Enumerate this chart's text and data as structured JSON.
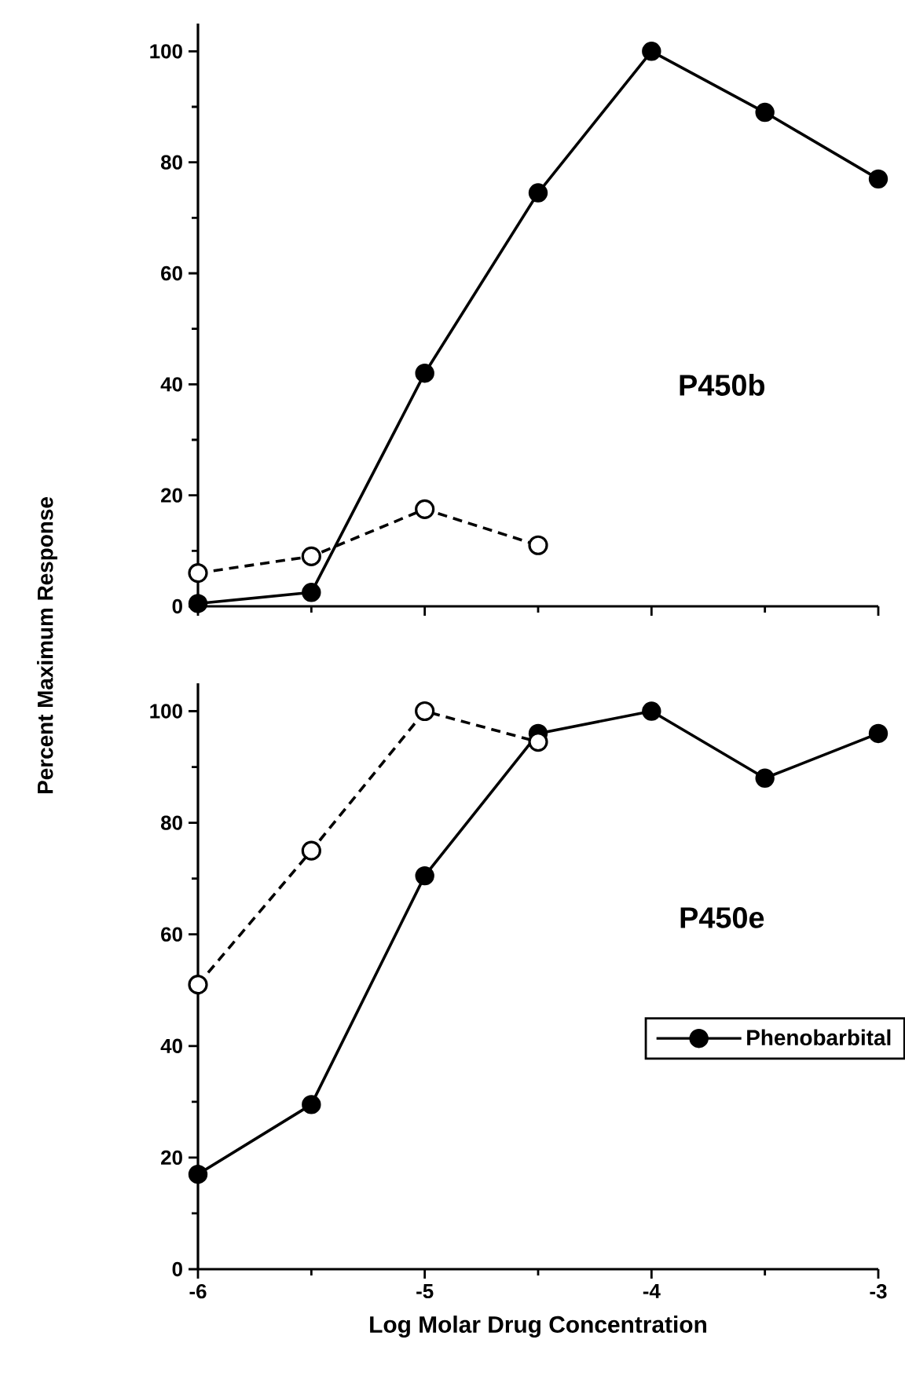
{
  "chart_data": [
    {
      "type": "line",
      "ylabel": "Percent Maximum Response",
      "annotations": [
        "P450b"
      ],
      "xlim": [
        -6,
        -3
      ],
      "xticks": [
        {
          "value": -6,
          "label": null
        },
        {
          "value": -5,
          "label": null
        },
        {
          "value": -4,
          "label": null
        },
        {
          "value": -3,
          "label": null
        }
      ],
      "ylim": [
        0,
        105
      ],
      "yticks": [
        0,
        20,
        40,
        60,
        80,
        100
      ],
      "tick_labels": "y",
      "legend": false,
      "series": [
        {
          "color": "#000000",
          "marker": "circle",
          "line_style": "solid",
          "x": [
            -6,
            -5.5,
            -5,
            -4.5,
            -4,
            -3.5,
            -3
          ],
          "values": [
            0.5,
            2.5,
            42,
            74.5,
            100,
            89,
            77
          ]
        },
        {
          "color": "#000000",
          "marker": "open circle",
          "line_style": "dashed",
          "x": [
            -6,
            -5.5,
            -5,
            -4.5
          ],
          "values": [
            6,
            9,
            17.5,
            11
          ]
        }
      ]
    },
    {
      "type": "line",
      "xlabel": "Log Molar Drug Concentration",
      "annotations": [
        "P450e"
      ],
      "xlim": [
        -6,
        -3
      ],
      "xticks": [
        -6,
        -5,
        -4,
        -3
      ],
      "ylim": [
        0,
        105
      ],
      "yticks": [
        0,
        20,
        40,
        60,
        80,
        100
      ],
      "legend": "right",
      "series": [
        {
          "name": "Phenobarbital",
          "color": "#000000",
          "marker": "circle",
          "line_style": "solid",
          "x": [
            -6,
            -5.5,
            -5,
            -4.5,
            -4,
            -3.5,
            -3
          ],
          "values": [
            17,
            29.5,
            70.5,
            96,
            100,
            88,
            96
          ]
        },
        {
          "color": "#000000",
          "marker": "open circle",
          "line_style": "dashed",
          "x": [
            -6,
            -5.5,
            -5,
            -4.5
          ],
          "values": [
            51,
            75,
            100,
            94.5
          ]
        }
      ]
    }
  ]
}
